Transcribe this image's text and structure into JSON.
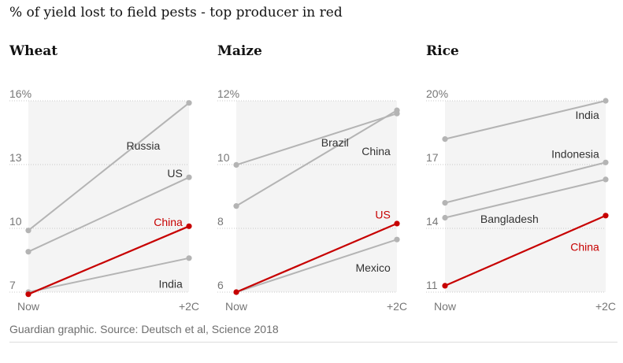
{
  "headline": "% of yield lost to field pests - top producer in red",
  "source": "Guardian graphic. Source: Deutsch et al, Science 2018",
  "colors": {
    "highlight": "#c70000",
    "series": "#b4b4b4",
    "plot_bg": "#f4f4f4",
    "grid": "#c8c8c8",
    "axis_text": "#767676",
    "label_text": "#333333"
  },
  "chart_data": [
    {
      "type": "line",
      "title": "Wheat",
      "x": [
        "Now",
        "+2C"
      ],
      "ylim": [
        7,
        16
      ],
      "yticks": [
        7,
        10,
        13,
        16
      ],
      "ytick_labels": [
        "7",
        "10",
        "13",
        "16%"
      ],
      "series": [
        {
          "name": "Russia",
          "values": [
            9.9,
            15.9
          ],
          "highlight": false
        },
        {
          "name": "US",
          "values": [
            8.9,
            12.4
          ],
          "highlight": false
        },
        {
          "name": "China",
          "values": [
            6.9,
            10.1
          ],
          "highlight": true
        },
        {
          "name": "India",
          "values": [
            7.0,
            8.6
          ],
          "highlight": false
        }
      ]
    },
    {
      "type": "line",
      "title": "Maize",
      "x": [
        "Now",
        "+2C"
      ],
      "ylim": [
        6,
        12
      ],
      "yticks": [
        6,
        8,
        10,
        12
      ],
      "ytick_labels": [
        "6",
        "8",
        "10",
        "12%"
      ],
      "series": [
        {
          "name": "Brazil",
          "values": [
            9.99,
            11.6
          ],
          "highlight": false
        },
        {
          "name": "China",
          "values": [
            8.7,
            11.7
          ],
          "highlight": false
        },
        {
          "name": "US",
          "values": [
            6.0,
            8.15
          ],
          "highlight": true
        },
        {
          "name": "Mexico",
          "values": [
            6.0,
            7.65
          ],
          "highlight": false
        }
      ]
    },
    {
      "type": "line",
      "title": "Rice",
      "x": [
        "Now",
        "+2C"
      ],
      "ylim": [
        11,
        20
      ],
      "yticks": [
        11,
        14,
        17,
        20
      ],
      "ytick_labels": [
        "11",
        "14",
        "17",
        "20%"
      ],
      "series": [
        {
          "name": "India",
          "values": [
            18.2,
            20.0
          ],
          "highlight": false
        },
        {
          "name": "Indonesia",
          "values": [
            15.2,
            17.1
          ],
          "highlight": false
        },
        {
          "name": "Bangladesh",
          "values": [
            14.5,
            16.3
          ],
          "highlight": false
        },
        {
          "name": "China",
          "values": [
            11.3,
            14.6
          ],
          "highlight": true
        }
      ]
    }
  ]
}
